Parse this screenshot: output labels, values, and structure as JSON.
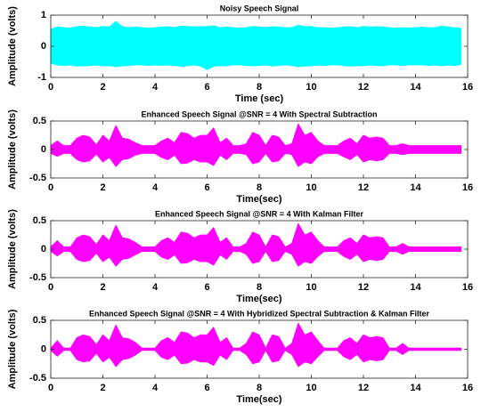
{
  "chart_data": [
    {
      "type": "area",
      "title": "Noisy Speech Signal",
      "xlabel": "Time (sec)",
      "ylabel": "Amplitude (volts)",
      "x": [
        0,
        0.25,
        0.5,
        0.75,
        1,
        1.25,
        1.5,
        1.75,
        2,
        2.25,
        2.5,
        2.75,
        3,
        3.25,
        3.5,
        3.75,
        4,
        4.25,
        4.5,
        4.75,
        5,
        5.25,
        5.5,
        5.75,
        6,
        6.25,
        6.5,
        6.75,
        7,
        7.25,
        7.5,
        7.75,
        8,
        8.25,
        8.5,
        8.75,
        9,
        9.25,
        9.5,
        9.75,
        10,
        10.25,
        10.5,
        10.75,
        11,
        11.25,
        11.5,
        11.75,
        12,
        12.25,
        12.5,
        12.75,
        13,
        13.25,
        13.5,
        13.75,
        14,
        14.25,
        14.5,
        14.75,
        15,
        15.25,
        15.5,
        15.75
      ],
      "series": [
        {
          "color": "#00ffff",
          "values": [
            0.55,
            0.62,
            0.6,
            0.58,
            0.63,
            0.65,
            0.62,
            0.6,
            0.64,
            0.62,
            0.8,
            0.63,
            0.6,
            0.62,
            0.6,
            0.58,
            0.6,
            0.62,
            0.63,
            0.6,
            0.65,
            0.64,
            0.62,
            0.63,
            0.64,
            0.66,
            0.6,
            0.62,
            0.6,
            0.58,
            0.6,
            0.64,
            0.62,
            0.6,
            0.63,
            0.62,
            0.6,
            0.6,
            0.68,
            0.63,
            0.64,
            0.6,
            0.6,
            0.58,
            0.6,
            0.62,
            0.63,
            0.6,
            0.64,
            0.62,
            0.63,
            0.62,
            0.6,
            0.58,
            0.6,
            0.59,
            0.6,
            0.62,
            0.6,
            0.6,
            0.65,
            0.62,
            0.6,
            0.58
          ]
        },
        {
          "color": "#00ffff",
          "values": [
            -0.55,
            -0.6,
            -0.62,
            -0.6,
            -0.64,
            -0.63,
            -0.62,
            -0.6,
            -0.63,
            -0.62,
            -0.66,
            -0.63,
            -0.62,
            -0.6,
            -0.6,
            -0.62,
            -0.6,
            -0.62,
            -0.6,
            -0.62,
            -0.64,
            -0.63,
            -0.6,
            -0.64,
            -0.75,
            -0.65,
            -0.62,
            -0.63,
            -0.6,
            -0.6,
            -0.62,
            -0.63,
            -0.62,
            -0.6,
            -0.64,
            -0.62,
            -0.6,
            -0.62,
            -0.66,
            -0.64,
            -0.63,
            -0.6,
            -0.62,
            -0.6,
            -0.6,
            -0.62,
            -0.64,
            -0.62,
            -0.63,
            -0.6,
            -0.62,
            -0.63,
            -0.6,
            -0.6,
            -0.62,
            -0.6,
            -0.6,
            -0.6,
            -0.62,
            -0.6,
            -0.63,
            -0.6,
            -0.62,
            -0.58
          ]
        }
      ],
      "xlim": [
        0,
        16
      ],
      "xticks": [
        0,
        2,
        4,
        6,
        8,
        10,
        12,
        14,
        16
      ],
      "ylim": [
        -1,
        1
      ],
      "yticks": [
        -1,
        0,
        1
      ]
    },
    {
      "type": "area",
      "title": "Enhanced Speech Signal @SNR = 4 With Spectral Subtraction",
      "xlabel": "Time(sec)",
      "ylabel": "Amplitude (volts)",
      "x": [
        0,
        0.25,
        0.5,
        0.75,
        1,
        1.25,
        1.5,
        1.75,
        2,
        2.25,
        2.5,
        2.75,
        3,
        3.25,
        3.5,
        3.75,
        4,
        4.25,
        4.5,
        4.75,
        5,
        5.25,
        5.5,
        5.75,
        6,
        6.25,
        6.5,
        6.75,
        7,
        7.25,
        7.5,
        7.75,
        8,
        8.25,
        8.5,
        8.75,
        9,
        9.25,
        9.5,
        9.75,
        10,
        10.25,
        10.5,
        10.75,
        11,
        11.25,
        11.5,
        11.75,
        12,
        12.25,
        12.5,
        12.75,
        13,
        13.25,
        13.5,
        13.75,
        14,
        14.25,
        14.5,
        14.75,
        15,
        15.25,
        15.5,
        15.75
      ],
      "series": [
        {
          "color": "#ff00ff",
          "values": [
            0.07,
            0.15,
            0.07,
            0.07,
            0.2,
            0.25,
            0.22,
            0.08,
            0.25,
            0.15,
            0.42,
            0.2,
            0.18,
            0.12,
            0.07,
            0.07,
            0.07,
            0.15,
            0.2,
            0.12,
            0.3,
            0.28,
            0.2,
            0.25,
            0.25,
            0.38,
            0.12,
            0.2,
            0.07,
            0.07,
            0.1,
            0.3,
            0.25,
            0.07,
            0.25,
            0.22,
            0.07,
            0.1,
            0.45,
            0.25,
            0.3,
            0.15,
            0.07,
            0.07,
            0.07,
            0.15,
            0.2,
            0.1,
            0.25,
            0.2,
            0.22,
            0.2,
            0.07,
            0.07,
            0.1,
            0.07,
            0.07,
            0.07,
            0.07,
            0.07,
            0.07,
            0.07,
            0.07,
            0.07
          ]
        },
        {
          "color": "#ff00ff",
          "values": [
            -0.07,
            -0.12,
            -0.07,
            -0.07,
            -0.18,
            -0.22,
            -0.2,
            -0.08,
            -0.22,
            -0.14,
            -0.3,
            -0.18,
            -0.16,
            -0.1,
            -0.07,
            -0.07,
            -0.07,
            -0.14,
            -0.18,
            -0.1,
            -0.25,
            -0.24,
            -0.18,
            -0.22,
            -0.22,
            -0.28,
            -0.1,
            -0.18,
            -0.07,
            -0.07,
            -0.09,
            -0.25,
            -0.22,
            -0.07,
            -0.22,
            -0.2,
            -0.07,
            -0.09,
            -0.3,
            -0.22,
            -0.25,
            -0.13,
            -0.07,
            -0.07,
            -0.07,
            -0.13,
            -0.18,
            -0.09,
            -0.22,
            -0.18,
            -0.2,
            -0.18,
            -0.07,
            -0.07,
            -0.09,
            -0.07,
            -0.07,
            -0.07,
            -0.07,
            -0.07,
            -0.07,
            -0.07,
            -0.07,
            -0.07
          ]
        }
      ],
      "xlim": [
        0,
        16
      ],
      "xticks": [
        0,
        2,
        4,
        6,
        8,
        10,
        12,
        14,
        16
      ],
      "ylim": [
        -0.5,
        0.5
      ],
      "yticks": [
        -0.5,
        0,
        0.5
      ]
    },
    {
      "type": "area",
      "title": "Enhanced Speech Signal @SNR = 4 With Kalman Filter",
      "xlabel": "Time(sec)",
      "ylabel": "Amplitude (volts)",
      "x": [
        0,
        0.25,
        0.5,
        0.75,
        1,
        1.25,
        1.5,
        1.75,
        2,
        2.25,
        2.5,
        2.75,
        3,
        3.25,
        3.5,
        3.75,
        4,
        4.25,
        4.5,
        4.75,
        5,
        5.25,
        5.5,
        5.75,
        6,
        6.25,
        6.5,
        6.75,
        7,
        7.25,
        7.5,
        7.75,
        8,
        8.25,
        8.5,
        8.75,
        9,
        9.25,
        9.5,
        9.75,
        10,
        10.25,
        10.5,
        10.75,
        11,
        11.25,
        11.5,
        11.75,
        12,
        12.25,
        12.5,
        12.75,
        13,
        13.25,
        13.5,
        13.75,
        14,
        14.25,
        14.5,
        14.75,
        15,
        15.25,
        15.5,
        15.75
      ],
      "series": [
        {
          "color": "#ff00ff",
          "values": [
            0.04,
            0.15,
            0.04,
            0.04,
            0.2,
            0.25,
            0.22,
            0.08,
            0.25,
            0.15,
            0.42,
            0.2,
            0.18,
            0.12,
            0.04,
            0.04,
            0.04,
            0.15,
            0.2,
            0.12,
            0.3,
            0.28,
            0.2,
            0.25,
            0.25,
            0.38,
            0.12,
            0.2,
            0.04,
            0.04,
            0.1,
            0.3,
            0.25,
            0.04,
            0.25,
            0.22,
            0.04,
            0.1,
            0.45,
            0.25,
            0.3,
            0.15,
            0.04,
            0.04,
            0.04,
            0.15,
            0.2,
            0.1,
            0.25,
            0.2,
            0.22,
            0.2,
            0.04,
            0.04,
            0.1,
            0.04,
            0.04,
            0.04,
            0.04,
            0.04,
            0.04,
            0.04,
            0.04,
            0.04
          ]
        },
        {
          "color": "#ff00ff",
          "values": [
            -0.04,
            -0.12,
            -0.04,
            -0.04,
            -0.18,
            -0.22,
            -0.2,
            -0.07,
            -0.22,
            -0.14,
            -0.3,
            -0.18,
            -0.16,
            -0.1,
            -0.04,
            -0.04,
            -0.04,
            -0.14,
            -0.18,
            -0.1,
            -0.25,
            -0.24,
            -0.18,
            -0.22,
            -0.22,
            -0.28,
            -0.1,
            -0.18,
            -0.04,
            -0.04,
            -0.09,
            -0.25,
            -0.22,
            -0.04,
            -0.22,
            -0.2,
            -0.04,
            -0.09,
            -0.3,
            -0.22,
            -0.25,
            -0.13,
            -0.04,
            -0.04,
            -0.04,
            -0.13,
            -0.18,
            -0.09,
            -0.22,
            -0.18,
            -0.2,
            -0.18,
            -0.04,
            -0.04,
            -0.09,
            -0.04,
            -0.04,
            -0.04,
            -0.04,
            -0.04,
            -0.04,
            -0.04,
            -0.04,
            -0.04
          ]
        }
      ],
      "xlim": [
        0,
        16
      ],
      "xticks": [
        0,
        2,
        4,
        6,
        8,
        10,
        12,
        14,
        16
      ],
      "ylim": [
        -0.5,
        0.5
      ],
      "yticks": [
        -0.5,
        0,
        0.5
      ]
    },
    {
      "type": "area",
      "title": "Enhanced Speech Signal @SNR = 4 With Hybridized Spectral Subtraction & Kalman Filter",
      "xlabel": "Time(sec)",
      "ylabel": "Amplitude (volts)",
      "x": [
        0,
        0.25,
        0.5,
        0.75,
        1,
        1.25,
        1.5,
        1.75,
        2,
        2.25,
        2.5,
        2.75,
        3,
        3.25,
        3.5,
        3.75,
        4,
        4.25,
        4.5,
        4.75,
        5,
        5.25,
        5.5,
        5.75,
        6,
        6.25,
        6.5,
        6.75,
        7,
        7.25,
        7.5,
        7.75,
        8,
        8.25,
        8.5,
        8.75,
        9,
        9.25,
        9.5,
        9.75,
        10,
        10.25,
        10.5,
        10.75,
        11,
        11.25,
        11.5,
        11.75,
        12,
        12.25,
        12.5,
        12.75,
        13,
        13.25,
        13.5,
        13.75,
        14,
        14.25,
        14.5,
        14.75,
        15,
        15.25,
        15.5,
        15.75
      ],
      "series": [
        {
          "color": "#ff00ff",
          "values": [
            0.02,
            0.15,
            0.02,
            0.02,
            0.2,
            0.25,
            0.22,
            0.08,
            0.25,
            0.15,
            0.42,
            0.2,
            0.18,
            0.12,
            0.02,
            0.02,
            0.02,
            0.15,
            0.2,
            0.12,
            0.3,
            0.28,
            0.2,
            0.25,
            0.25,
            0.38,
            0.12,
            0.2,
            0.02,
            0.02,
            0.1,
            0.3,
            0.25,
            0.02,
            0.25,
            0.22,
            0.02,
            0.1,
            0.45,
            0.25,
            0.3,
            0.15,
            0.02,
            0.02,
            0.02,
            0.15,
            0.2,
            0.1,
            0.25,
            0.2,
            0.22,
            0.2,
            0.02,
            0.02,
            0.1,
            0.02,
            0.02,
            0.02,
            0.02,
            0.02,
            0.02,
            0.02,
            0.02,
            0.02
          ]
        },
        {
          "color": "#ff00ff",
          "values": [
            -0.02,
            -0.12,
            -0.02,
            -0.02,
            -0.18,
            -0.22,
            -0.2,
            -0.07,
            -0.22,
            -0.14,
            -0.3,
            -0.18,
            -0.16,
            -0.1,
            -0.02,
            -0.02,
            -0.02,
            -0.14,
            -0.18,
            -0.1,
            -0.25,
            -0.24,
            -0.18,
            -0.22,
            -0.22,
            -0.28,
            -0.1,
            -0.18,
            -0.02,
            -0.02,
            -0.09,
            -0.25,
            -0.22,
            -0.02,
            -0.22,
            -0.2,
            -0.02,
            -0.09,
            -0.3,
            -0.22,
            -0.25,
            -0.13,
            -0.02,
            -0.02,
            -0.02,
            -0.13,
            -0.18,
            -0.09,
            -0.22,
            -0.18,
            -0.2,
            -0.18,
            -0.02,
            -0.02,
            -0.09,
            -0.02,
            -0.02,
            -0.02,
            -0.02,
            -0.02,
            -0.02,
            -0.02,
            -0.02,
            -0.02
          ]
        }
      ],
      "xlim": [
        0,
        16
      ],
      "xticks": [
        0,
        2,
        4,
        6,
        8,
        10,
        12,
        14,
        16
      ],
      "ylim": [
        -0.5,
        0.5
      ],
      "yticks": [
        -0.5,
        0,
        0.5
      ]
    }
  ]
}
